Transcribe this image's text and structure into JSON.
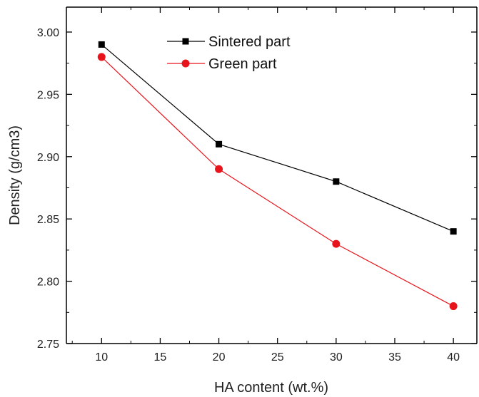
{
  "chart_data": {
    "type": "line",
    "title": "",
    "xlabel": "HA content (wt.%)",
    "ylabel": "Density (g/cm3)",
    "xlim": [
      7,
      42
    ],
    "ylim": [
      2.75,
      3.02
    ],
    "x_ticks": [
      10,
      15,
      20,
      25,
      30,
      35,
      40
    ],
    "y_ticks": [
      2.75,
      2.8,
      2.85,
      2.9,
      2.95,
      3.0
    ],
    "x_tick_labels": [
      "10",
      "15",
      "20",
      "25",
      "30",
      "35",
      "40"
    ],
    "y_tick_labels": [
      "2.75",
      "2.80",
      "2.85",
      "2.90",
      "2.95",
      "3.00"
    ],
    "x": [
      10,
      20,
      30,
      40
    ],
    "series": [
      {
        "name": "Sintered part",
        "values": [
          2.99,
          2.91,
          2.88,
          2.84
        ],
        "color": "#000000",
        "marker": "square"
      },
      {
        "name": "Green part",
        "values": [
          2.98,
          2.89,
          2.83,
          2.78
        ],
        "color": "#e8141c",
        "marker": "circle"
      }
    ],
    "grid": false,
    "legend_position": "top-left"
  }
}
